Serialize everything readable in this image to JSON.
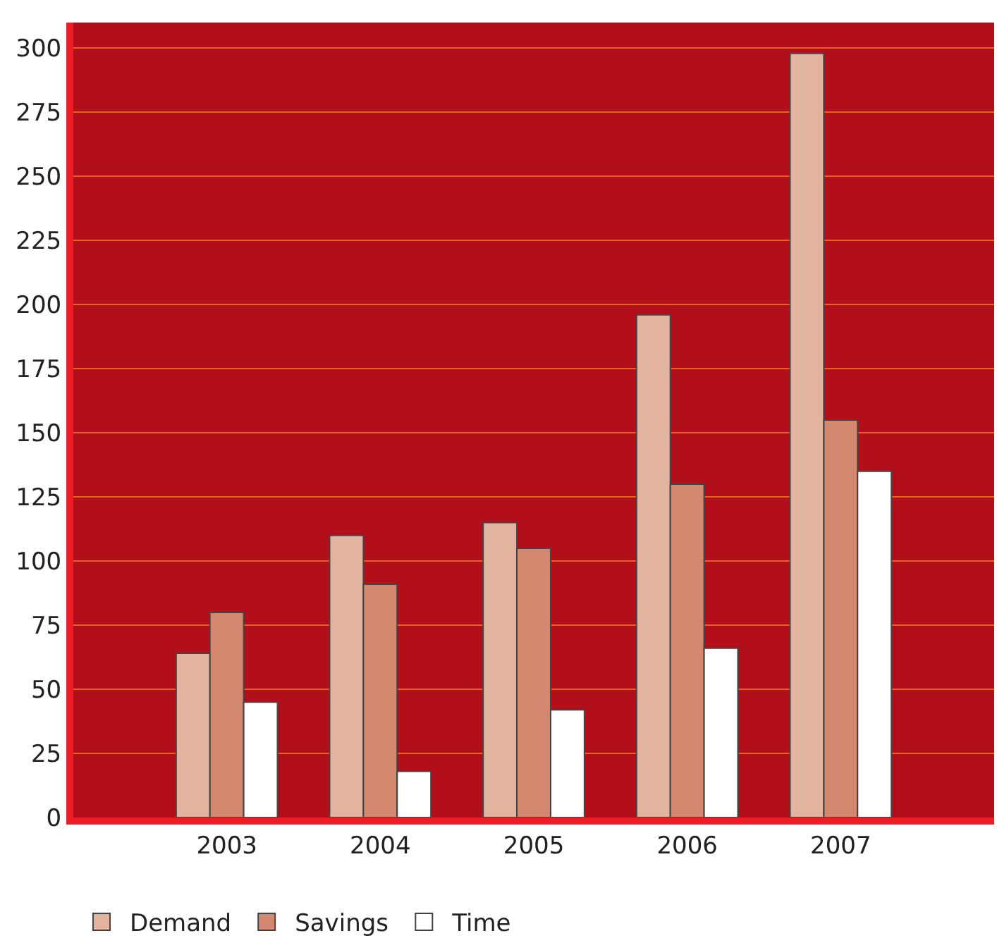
{
  "chart_data": {
    "type": "bar",
    "categories": [
      "2003",
      "2004",
      "2005",
      "2006",
      "2007"
    ],
    "series": [
      {
        "name": "Demand",
        "color": "#e2b4a0",
        "values": [
          64,
          110,
          115,
          196,
          298
        ]
      },
      {
        "name": "Savings",
        "color": "#d48870",
        "values": [
          80,
          91,
          105,
          130,
          155
        ]
      },
      {
        "name": "Time",
        "color": "#ffffff",
        "values": [
          45,
          18,
          42,
          66,
          135
        ]
      }
    ],
    "ylim": [
      0,
      310
    ],
    "yticks": [
      0,
      25,
      50,
      75,
      100,
      125,
      150,
      175,
      200,
      225,
      250,
      275,
      300
    ],
    "grid": "y",
    "legend": "bottom"
  }
}
